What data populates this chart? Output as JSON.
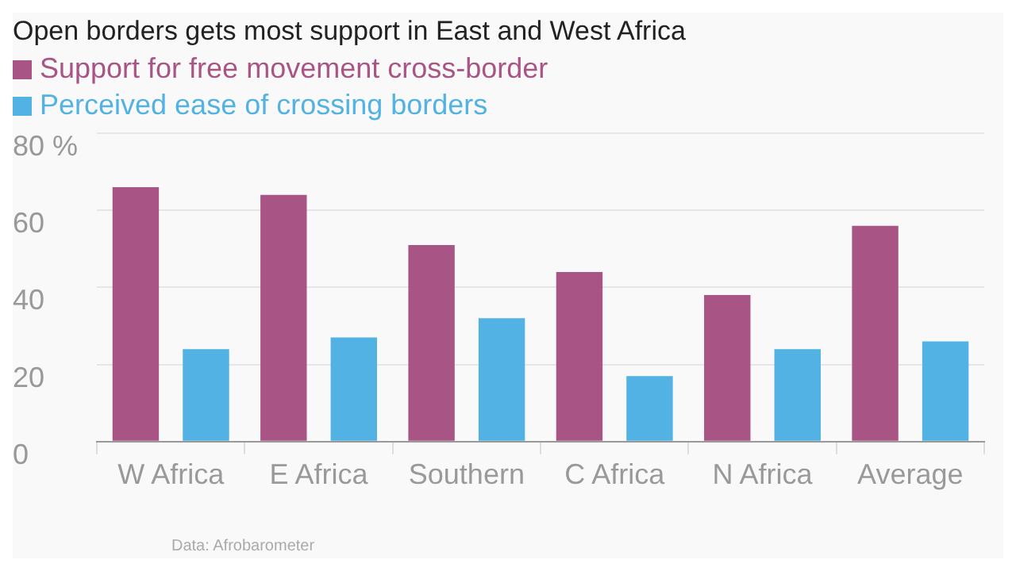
{
  "chart_data": {
    "type": "bar",
    "title": "Open borders gets most support in East and West Africa",
    "categories": [
      "W Africa",
      "E Africa",
      "Southern",
      "C Africa",
      "N Africa",
      "Average"
    ],
    "series": [
      {
        "name": "Support for free movement cross-border",
        "color": "#a85585",
        "values": [
          66,
          64,
          51,
          44,
          38,
          56
        ]
      },
      {
        "name": "Perceived ease of crossing borders",
        "color": "#51b2e3",
        "values": [
          24,
          27,
          32,
          17,
          24,
          26
        ]
      }
    ],
    "ylim": [
      0,
      80
    ],
    "yticks": [
      0,
      20,
      40,
      60,
      {
        "value": 80,
        "label": "80 %"
      }
    ],
    "grid": "y",
    "legend": "top left",
    "annotations": [
      "Data: Afrobarometer"
    ]
  }
}
